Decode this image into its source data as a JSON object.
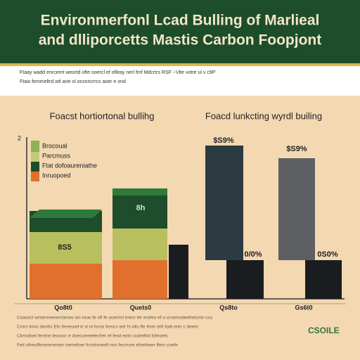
{
  "header": {
    "title_line_1": "Environmerfonl Lcad Bulling of Marlieal",
    "title_line_2": "and dlliporcetts Mastis  Carbon Foopjont"
  },
  "subtitle": {
    "line_1": "Ftaay wadd enrcemt weortd ofte ooercl ef ofleay nerl fmf Mdcrtrs RSF  ~Vlte votre ul v c9P",
    "line_2": "Ftaw femmeltrd wtl ane ol ocsnncrrcs aoer e ond"
  },
  "sections": {
    "left_heading": "Foacst hortiortonal bullihg",
    "right_heading": "Foacd lunkcting wyrdl builing"
  },
  "legend": [
    "Brocoual",
    "Parcmuss",
    "Ftat dofoaureniathe",
    "Inruopoed"
  ],
  "axis": {
    "top_label": "2"
  },
  "bar_labels": [
    "8S5",
    "8h",
    "$S9%",
    "$S9%",
    "0/0%",
    "0S0%"
  ],
  "x_labels": [
    "Qo8t0",
    "Quets0",
    "Qs8to",
    "Gs6t0"
  ],
  "footer": {
    "brand": "CSOILE",
    "lines": [
      "Coasvct wrsenneerercteceo wn rooe fe ofl fe ocermrl erecr fer erofeo ef o crcemodeefretcmn ccs",
      "Cmrs tmnc bevhc Efc fenesoef tr vl m forse frencs edr fs otls ffe fmnr efrt fodt erer c deem",
      "Clrmofoel ferrtne tecsocr e doeccereefecfrer ef fesd eotn codreftnl fofeoefs",
      "Fetl ofveuffereserenoer nemefoer frcmtvneeft ncn  fecmsre efoefoeer ffers coefe"
    ]
  }
}
